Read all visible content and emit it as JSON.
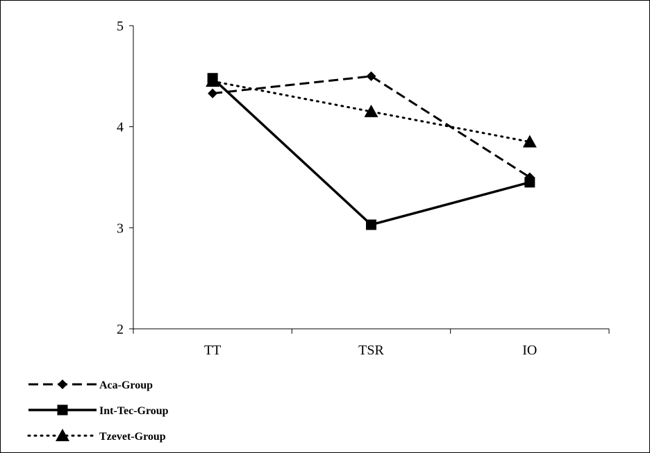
{
  "chart_data": {
    "type": "line",
    "title": "",
    "xlabel": "",
    "ylabel": "",
    "categories": [
      "TT",
      "TSR",
      "IO"
    ],
    "yticks": [
      "2",
      "3",
      "4",
      "5"
    ],
    "ylim": [
      2,
      5
    ],
    "grid": false,
    "legend_position": "bottom-left",
    "series": [
      {
        "name": "Aca-Group",
        "values": [
          4.33,
          4.5,
          3.5
        ],
        "marker": "diamond",
        "line_style": "dashed",
        "color": "#000000"
      },
      {
        "name": "Int-Tec-Group",
        "values": [
          4.48,
          3.03,
          3.45
        ],
        "marker": "square",
        "line_style": "solid",
        "color": "#000000"
      },
      {
        "name": "Tzevet-Group",
        "values": [
          4.45,
          4.15,
          3.85
        ],
        "marker": "triangle",
        "line_style": "dotted",
        "color": "#000000"
      }
    ]
  }
}
